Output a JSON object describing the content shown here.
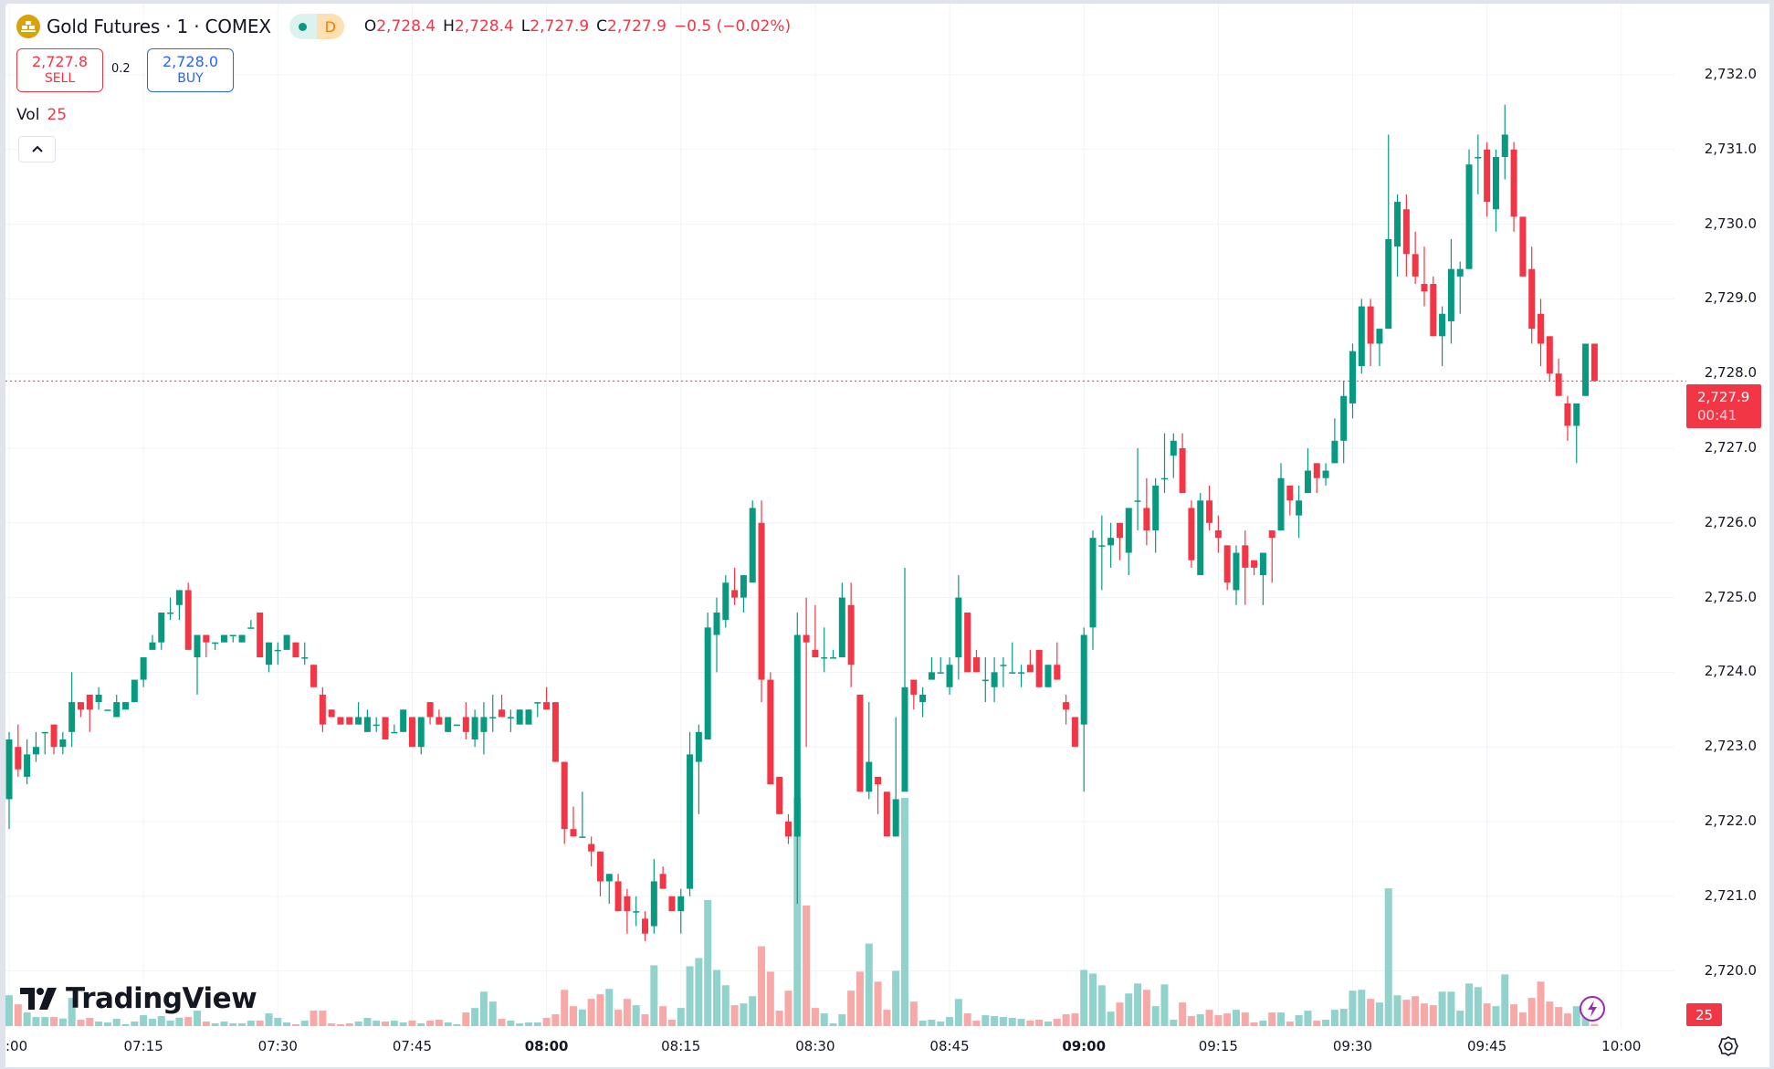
{
  "header": {
    "symbol_title": "Gold Futures · 1 · COMEX",
    "market_status_icon": "market-open-dot",
    "delay_badge": "D",
    "ohlc": [
      {
        "key": "O",
        "value": "2,728.4"
      },
      {
        "key": "H",
        "value": "2,728.4"
      },
      {
        "key": "L",
        "value": "2,727.9"
      },
      {
        "key": "C",
        "value": "2,727.9"
      }
    ],
    "change": "−0.5 (−0.02%)"
  },
  "trade": {
    "sell_price": "2,727.8",
    "sell_label": "SELL",
    "spread": "0.2",
    "buy_price": "2,728.0",
    "buy_label": "BUY"
  },
  "volume_legend": {
    "label": "Vol",
    "value": "25"
  },
  "collapse_icon": "chevron-up-icon",
  "price_axis": {
    "labels": [
      "2,732.0",
      "2,731.0",
      "2,730.0",
      "2,729.0",
      "2,728.0",
      "2,727.0",
      "2,726.0",
      "2,725.0",
      "2,724.0",
      "2,723.0",
      "2,722.0",
      "2,721.0",
      "2,720.0"
    ],
    "last_price": "2,727.9",
    "countdown": "00:41",
    "volume_label": "25"
  },
  "time_axis": {
    "labels": [
      ":00",
      "07:15",
      "07:30",
      "07:45",
      "08:00",
      "08:15",
      "08:30",
      "08:45",
      "09:00",
      "09:15",
      "09:30",
      "09:45",
      "10:00"
    ],
    "bold": [
      "08:00",
      "09:00"
    ]
  },
  "logo": "TradingView",
  "colors": {
    "up": "#089981",
    "down": "#F23645",
    "vol_up": "#92d2cc",
    "vol_down": "#f7a9a7",
    "grid": "#f0f3fa"
  },
  "chart_data": {
    "type": "candlestick",
    "interval": "1 minute",
    "start_time": "07:00",
    "ylim": [
      2720.0,
      2732.0
    ],
    "last_price": 2727.9,
    "ohlc": [
      [
        2722.3,
        2723.2,
        2721.9,
        2723.1
      ],
      [
        2723.0,
        2723.3,
        2722.6,
        2722.7
      ],
      [
        2722.6,
        2723.1,
        2722.5,
        2722.9
      ],
      [
        2722.9,
        2723.2,
        2722.8,
        2723.0
      ],
      [
        2723.2,
        2723.2,
        2722.9,
        2723.2
      ],
      [
        2723.3,
        2723.3,
        2722.9,
        2723.0
      ],
      [
        2723.0,
        2723.2,
        2722.9,
        2723.1
      ],
      [
        2723.2,
        2724.0,
        2723.0,
        2723.6
      ],
      [
        2723.6,
        2723.6,
        2723.4,
        2723.5
      ],
      [
        2723.7,
        2723.7,
        2723.2,
        2723.5
      ],
      [
        2723.6,
        2723.8,
        2723.5,
        2723.7
      ],
      [
        2723.5,
        2723.5,
        2723.5,
        2723.5
      ],
      [
        2723.4,
        2723.7,
        2723.4,
        2723.6
      ],
      [
        2723.5,
        2723.6,
        2723.5,
        2723.6
      ],
      [
        2723.6,
        2723.9,
        2723.6,
        2723.9
      ],
      [
        2723.9,
        2724.2,
        2723.8,
        2724.2
      ],
      [
        2724.3,
        2724.5,
        2724.3,
        2724.4
      ],
      [
        2724.4,
        2724.8,
        2724.3,
        2724.8
      ],
      [
        2724.8,
        2725.0,
        2724.7,
        2724.8
      ],
      [
        2724.9,
        2725.1,
        2724.7,
        2725.1
      ],
      [
        2725.1,
        2725.2,
        2724.3,
        2724.3
      ],
      [
        2724.2,
        2724.5,
        2723.7,
        2724.5
      ],
      [
        2724.5,
        2724.5,
        2724.2,
        2724.4
      ],
      [
        2724.4,
        2724.4,
        2724.3,
        2724.4
      ],
      [
        2724.4,
        2724.5,
        2724.4,
        2724.5
      ],
      [
        2724.5,
        2724.5,
        2724.4,
        2724.5
      ],
      [
        2724.4,
        2724.5,
        2724.4,
        2724.5
      ],
      [
        2724.6,
        2724.7,
        2724.6,
        2724.6
      ],
      [
        2724.8,
        2724.8,
        2724.2,
        2724.2
      ],
      [
        2724.1,
        2724.4,
        2724.0,
        2724.4
      ],
      [
        2724.3,
        2724.4,
        2724.1,
        2724.3
      ],
      [
        2724.3,
        2724.5,
        2724.3,
        2724.5
      ],
      [
        2724.4,
        2724.4,
        2724.2,
        2724.2
      ],
      [
        2724.2,
        2724.4,
        2724.1,
        2724.2
      ],
      [
        2724.1,
        2724.1,
        2723.8,
        2723.8
      ],
      [
        2723.7,
        2723.8,
        2723.2,
        2723.3
      ],
      [
        2723.5,
        2723.5,
        2723.4,
        2723.4
      ],
      [
        2723.4,
        2723.4,
        2723.3,
        2723.3
      ],
      [
        2723.4,
        2723.4,
        2723.3,
        2723.3
      ],
      [
        2723.3,
        2723.6,
        2723.3,
        2723.4
      ],
      [
        2723.2,
        2723.5,
        2723.2,
        2723.4
      ],
      [
        2723.3,
        2723.4,
        2723.2,
        2723.3
      ],
      [
        2723.4,
        2723.4,
        2723.1,
        2723.1
      ],
      [
        2723.2,
        2723.3,
        2723.2,
        2723.2
      ],
      [
        2723.2,
        2723.5,
        2723.2,
        2723.5
      ],
      [
        2723.4,
        2723.4,
        2723.0,
        2723.0
      ],
      [
        2723.0,
        2723.4,
        2722.9,
        2723.4
      ],
      [
        2723.6,
        2723.6,
        2723.3,
        2723.4
      ],
      [
        2723.4,
        2723.5,
        2723.3,
        2723.3
      ],
      [
        2723.2,
        2723.4,
        2723.2,
        2723.4
      ],
      [
        2723.3,
        2723.3,
        2723.3,
        2723.3
      ],
      [
        2723.4,
        2723.6,
        2723.1,
        2723.2
      ],
      [
        2723.1,
        2723.5,
        2723.0,
        2723.4
      ],
      [
        2723.2,
        2723.6,
        2722.9,
        2723.4
      ],
      [
        2723.4,
        2723.7,
        2723.2,
        2723.4
      ],
      [
        2723.5,
        2723.7,
        2723.4,
        2723.4
      ],
      [
        2723.4,
        2723.5,
        2723.2,
        2723.4
      ],
      [
        2723.3,
        2723.5,
        2723.3,
        2723.5
      ],
      [
        2723.3,
        2723.5,
        2723.3,
        2723.5
      ],
      [
        2723.6,
        2723.6,
        2723.4,
        2723.6
      ],
      [
        2723.6,
        2723.8,
        2723.5,
        2723.5
      ],
      [
        2723.6,
        2723.6,
        2722.8,
        2722.8
      ],
      [
        2722.8,
        2722.8,
        2721.7,
        2721.9
      ],
      [
        2721.9,
        2722.2,
        2721.8,
        2721.8
      ],
      [
        2721.8,
        2722.4,
        2721.8,
        2721.8
      ],
      [
        2721.7,
        2721.8,
        2721.4,
        2721.6
      ],
      [
        2721.6,
        2721.6,
        2721.0,
        2721.2
      ],
      [
        2721.2,
        2721.3,
        2720.9,
        2721.3
      ],
      [
        2721.2,
        2721.3,
        2720.8,
        2720.8
      ],
      [
        2721.0,
        2721.1,
        2720.5,
        2720.8
      ],
      [
        2720.8,
        2721.0,
        2720.6,
        2720.8
      ],
      [
        2720.7,
        2720.8,
        2720.4,
        2720.5
      ],
      [
        2720.6,
        2721.5,
        2720.5,
        2721.2
      ],
      [
        2721.3,
        2721.4,
        2721.1,
        2721.1
      ],
      [
        2721.0,
        2721.0,
        2720.8,
        2720.8
      ],
      [
        2720.8,
        2721.1,
        2720.5,
        2721.0
      ],
      [
        2721.1,
        2723.2,
        2721.0,
        2722.9
      ],
      [
        2722.8,
        2723.3,
        2722.1,
        2723.2
      ],
      [
        2723.1,
        2724.8,
        2723.1,
        2724.6
      ],
      [
        2724.5,
        2725.0,
        2724.0,
        2724.8
      ],
      [
        2724.7,
        2725.3,
        2724.6,
        2725.2
      ],
      [
        2725.1,
        2725.4,
        2724.9,
        2725.0
      ],
      [
        2725.0,
        2725.3,
        2724.8,
        2725.3
      ],
      [
        2725.2,
        2726.3,
        2725.2,
        2726.2
      ],
      [
        2726.0,
        2726.3,
        2723.6,
        2723.9
      ],
      [
        2723.9,
        2724.0,
        2722.5,
        2722.5
      ],
      [
        2722.6,
        2722.6,
        2722.1,
        2722.1
      ],
      [
        2722.0,
        2722.1,
        2721.7,
        2721.8
      ],
      [
        2721.8,
        2724.8,
        2720.9,
        2724.5
      ],
      [
        2724.5,
        2725.0,
        2723.0,
        2724.4
      ],
      [
        2724.3,
        2724.9,
        2724.2,
        2724.2
      ],
      [
        2724.2,
        2724.6,
        2724.0,
        2724.2
      ],
      [
        2724.2,
        2724.3,
        2724.2,
        2724.2
      ],
      [
        2724.2,
        2725.2,
        2724.2,
        2725.0
      ],
      [
        2724.9,
        2725.2,
        2723.8,
        2724.1
      ],
      [
        2723.7,
        2723.7,
        2722.4,
        2722.4
      ],
      [
        2722.4,
        2723.6,
        2722.3,
        2722.8
      ],
      [
        2722.6,
        2722.6,
        2722.1,
        2722.5
      ],
      [
        2722.4,
        2722.4,
        2721.8,
        2721.8
      ],
      [
        2721.8,
        2723.4,
        2721.8,
        2722.3
      ],
      [
        2722.4,
        2725.4,
        2722.4,
        2723.8
      ],
      [
        2723.9,
        2723.9,
        2723.5,
        2723.7
      ],
      [
        2723.6,
        2723.8,
        2723.4,
        2723.7
      ],
      [
        2723.9,
        2724.2,
        2723.9,
        2724.0
      ],
      [
        2724.0,
        2724.2,
        2724.0,
        2724.0
      ],
      [
        2723.8,
        2724.2,
        2723.7,
        2724.1
      ],
      [
        2724.2,
        2725.3,
        2723.9,
        2725.0
      ],
      [
        2724.8,
        2724.8,
        2724.0,
        2724.0
      ],
      [
        2724.2,
        2724.3,
        2724.0,
        2724.0
      ],
      [
        2723.9,
        2724.2,
        2723.6,
        2723.9
      ],
      [
        2723.8,
        2724.2,
        2723.6,
        2724.0
      ],
      [
        2724.1,
        2724.2,
        2723.8,
        2724.1
      ],
      [
        2724.0,
        2724.4,
        2724.0,
        2724.0
      ],
      [
        2724.0,
        2724.1,
        2723.8,
        2724.0
      ],
      [
        2724.1,
        2724.3,
        2724.0,
        2724.0
      ],
      [
        2724.3,
        2724.3,
        2723.8,
        2723.8
      ],
      [
        2723.8,
        2724.1,
        2723.8,
        2724.1
      ],
      [
        2724.1,
        2724.4,
        2723.9,
        2723.9
      ],
      [
        2723.6,
        2723.7,
        2723.3,
        2723.5
      ],
      [
        2723.4,
        2723.4,
        2723.0,
        2723.0
      ],
      [
        2723.3,
        2724.6,
        2722.4,
        2724.5
      ],
      [
        2724.6,
        2725.9,
        2724.3,
        2725.8
      ],
      [
        2725.7,
        2726.1,
        2725.1,
        2725.7
      ],
      [
        2725.7,
        2726.0,
        2725.4,
        2725.8
      ],
      [
        2726.0,
        2726.0,
        2725.5,
        2725.8
      ],
      [
        2725.6,
        2726.2,
        2725.3,
        2726.2
      ],
      [
        2726.3,
        2727.0,
        2725.9,
        2726.3
      ],
      [
        2726.2,
        2726.6,
        2725.7,
        2725.9
      ],
      [
        2725.9,
        2726.6,
        2725.6,
        2726.5
      ],
      [
        2726.6,
        2727.2,
        2726.4,
        2726.6
      ],
      [
        2726.9,
        2727.2,
        2726.6,
        2727.1
      ],
      [
        2727.0,
        2727.2,
        2726.4,
        2726.4
      ],
      [
        2726.2,
        2726.3,
        2725.4,
        2725.5
      ],
      [
        2725.3,
        2726.4,
        2725.3,
        2726.3
      ],
      [
        2726.3,
        2726.5,
        2725.9,
        2726.0
      ],
      [
        2725.9,
        2726.1,
        2725.6,
        2725.8
      ],
      [
        2725.7,
        2725.7,
        2725.1,
        2725.2
      ],
      [
        2725.1,
        2725.7,
        2724.9,
        2725.6
      ],
      [
        2725.7,
        2725.9,
        2724.9,
        2725.4
      ],
      [
        2725.5,
        2725.5,
        2725.3,
        2725.4
      ],
      [
        2725.3,
        2725.6,
        2724.9,
        2725.6
      ],
      [
        2725.9,
        2725.9,
        2725.2,
        2725.8
      ],
      [
        2725.9,
        2726.8,
        2725.9,
        2726.6
      ],
      [
        2726.5,
        2726.5,
        2726.1,
        2726.3
      ],
      [
        2726.1,
        2726.5,
        2725.8,
        2726.3
      ],
      [
        2726.4,
        2727.0,
        2726.4,
        2726.7
      ],
      [
        2726.8,
        2726.8,
        2726.4,
        2726.6
      ],
      [
        2726.6,
        2726.8,
        2726.5,
        2726.7
      ],
      [
        2726.8,
        2727.4,
        2726.8,
        2727.1
      ],
      [
        2727.1,
        2727.9,
        2726.8,
        2727.7
      ],
      [
        2727.6,
        2728.4,
        2727.4,
        2728.3
      ],
      [
        2728.1,
        2729.0,
        2728.0,
        2728.9
      ],
      [
        2728.9,
        2729.0,
        2728.1,
        2728.4
      ],
      [
        2728.4,
        2728.6,
        2728.1,
        2728.6
      ],
      [
        2728.6,
        2731.2,
        2728.6,
        2729.8
      ],
      [
        2729.7,
        2730.4,
        2729.3,
        2730.3
      ],
      [
        2730.2,
        2730.4,
        2729.3,
        2729.6
      ],
      [
        2729.6,
        2729.9,
        2729.2,
        2729.3
      ],
      [
        2729.2,
        2729.7,
        2728.9,
        2729.1
      ],
      [
        2729.2,
        2729.3,
        2728.5,
        2728.5
      ],
      [
        2728.5,
        2728.9,
        2728.1,
        2728.8
      ],
      [
        2728.7,
        2729.8,
        2728.4,
        2729.4
      ],
      [
        2729.3,
        2729.5,
        2728.8,
        2729.4
      ],
      [
        2729.4,
        2731.0,
        2729.4,
        2730.8
      ],
      [
        2730.9,
        2731.2,
        2730.4,
        2730.9
      ],
      [
        2731.0,
        2731.1,
        2730.1,
        2730.3
      ],
      [
        2730.2,
        2731.0,
        2729.9,
        2730.9
      ],
      [
        2730.9,
        2731.6,
        2730.6,
        2731.2
      ],
      [
        2731.0,
        2731.1,
        2729.9,
        2730.1
      ],
      [
        2730.1,
        2730.1,
        2729.3,
        2729.3
      ],
      [
        2729.4,
        2729.7,
        2728.4,
        2728.6
      ],
      [
        2728.8,
        2729.0,
        2728.1,
        2728.4
      ],
      [
        2728.5,
        2728.5,
        2727.9,
        2728.0
      ],
      [
        2728.0,
        2728.2,
        2727.7,
        2727.7
      ],
      [
        2727.6,
        2727.7,
        2727.1,
        2727.3
      ],
      [
        2727.3,
        2727.6,
        2726.8,
        2727.6
      ],
      [
        2727.7,
        2728.4,
        2727.7,
        2728.4
      ],
      [
        2728.4,
        2728.4,
        2727.9,
        2727.9
      ]
    ],
    "volume": [
      357,
      252,
      158,
      105,
      105,
      105,
      88,
      326,
      74,
      95,
      53,
      42,
      84,
      21,
      53,
      126,
      84,
      116,
      63,
      98,
      105,
      179,
      53,
      32,
      53,
      32,
      32,
      63,
      63,
      147,
      95,
      42,
      21,
      63,
      179,
      179,
      32,
      21,
      32,
      53,
      95,
      63,
      53,
      63,
      42,
      63,
      32,
      63,
      74,
      42,
      21,
      158,
      210,
      399,
      284,
      84,
      63,
      32,
      42,
      42,
      95,
      137,
      420,
      231,
      193,
      315,
      368,
      431,
      189,
      315,
      242,
      137,
      704,
      231,
      74,
      210,
      693,
      788,
      1460,
      651,
      473,
      242,
      263,
      347,
      924,
      630,
      179,
      410,
      2643,
      1397,
      210,
      147,
      32,
      137,
      410,
      630,
      956,
      515,
      189,
      641,
      2643,
      284,
      63,
      74,
      53,
      105,
      315,
      147,
      63,
      126,
      116,
      105,
      95,
      84,
      63,
      74,
      53,
      84,
      137,
      147,
      651,
      609,
      473,
      168,
      273,
      378,
      494,
      420,
      231,
      483,
      74,
      273,
      116,
      137,
      189,
      126,
      147,
      189,
      158,
      42,
      63,
      158,
      158,
      53,
      126,
      179,
      63,
      74,
      189,
      200,
      410,
      420,
      315,
      273,
      1596,
      357,
      305,
      347,
      263,
      242,
      399,
      399,
      179,
      494,
      452,
      263,
      231,
      599,
      252,
      158,
      326,
      515,
      284,
      221,
      147,
      231,
      123,
      25
    ]
  }
}
